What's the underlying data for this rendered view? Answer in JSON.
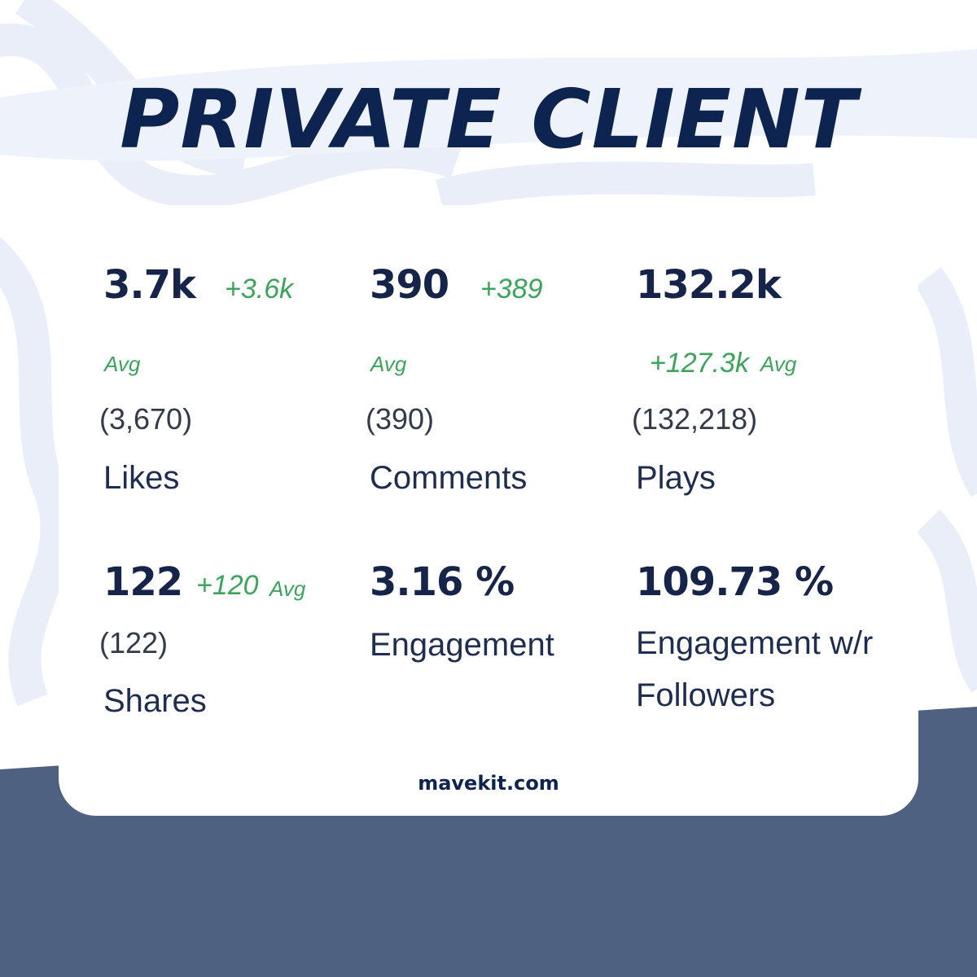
{
  "title": "PRIVATE CLIENT",
  "stats": [
    {
      "value": "3.7k",
      "change": "+3.6k",
      "avg": "Avg",
      "exact": "(3,670)",
      "label": "Likes"
    },
    {
      "value": "390",
      "change": "+389",
      "avg": "Avg",
      "exact": "(390)",
      "label": "Comments"
    },
    {
      "value": "132.2k",
      "change": "+127.3k",
      "avg": "Avg",
      "exact": "(132,218)",
      "label": "Plays"
    },
    {
      "value": "122",
      "change": "+120",
      "avg": "Avg",
      "exact": "(122)",
      "label": "Shares"
    },
    {
      "value": "3.16 %",
      "label": "Engagement"
    },
    {
      "value": "109.73 %",
      "label": "Engagement w/r Followers"
    }
  ],
  "footer": "mavekit.com"
}
